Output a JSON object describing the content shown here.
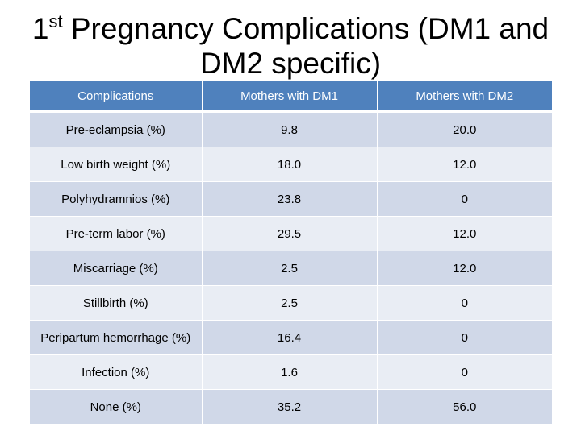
{
  "title": {
    "prefix": "1",
    "superscript": "st",
    "line1_rest": " Pregnancy Complications (DM1 and",
    "line2": "DM2 specific)"
  },
  "table": {
    "headers": [
      "Complications",
      "Mothers with DM1",
      "Mothers with DM2"
    ],
    "rows": [
      [
        "Pre-eclampsia (%)",
        "9.8",
        "20.0"
      ],
      [
        "Low birth weight (%)",
        "18.0",
        "12.0"
      ],
      [
        "Polyhydramnios (%)",
        "23.8",
        "0"
      ],
      [
        "Pre-term labor (%)",
        "29.5",
        "12.0"
      ],
      [
        "Miscarriage (%)",
        "2.5",
        "12.0"
      ],
      [
        "Stillbirth (%)",
        "2.5",
        "0"
      ],
      [
        "Peripartum hemorrhage (%)",
        "16.4",
        "0"
      ],
      [
        "Infection (%)",
        "1.6",
        "0"
      ],
      [
        "None (%)",
        "35.2",
        "56.0"
      ]
    ]
  },
  "colors": {
    "header_bg": "#4f81bd",
    "row_band_a": "#d0d8e8",
    "row_band_b": "#e9edf4"
  }
}
